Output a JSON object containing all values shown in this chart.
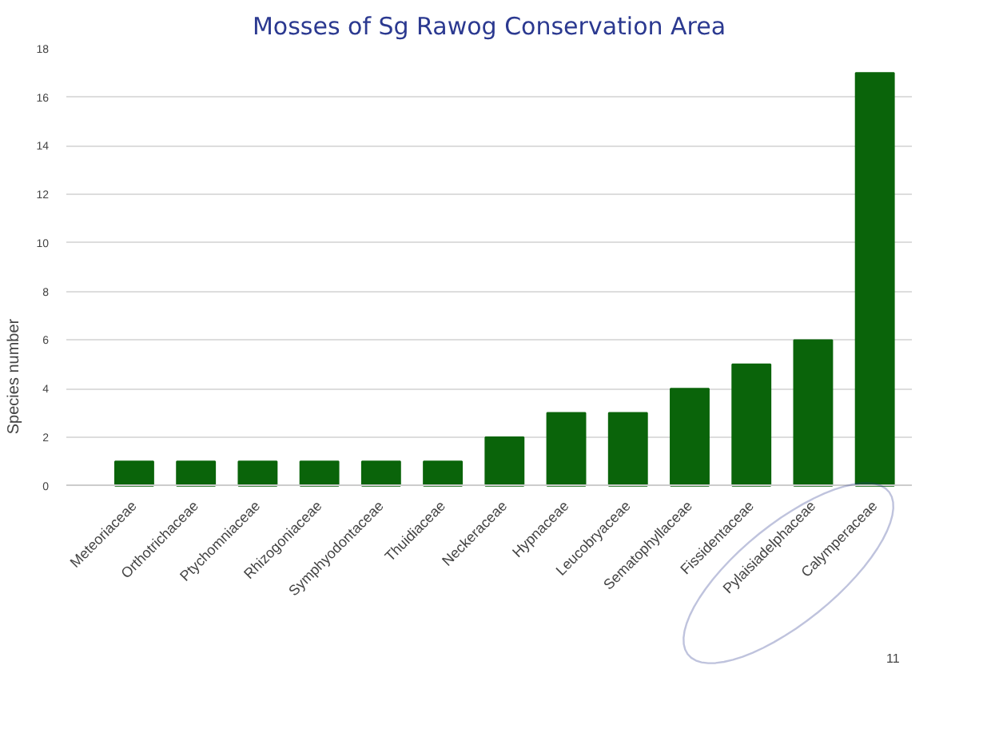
{
  "chart_data": {
    "type": "bar",
    "title": "Mosses of Sg Rawog Conservation Area",
    "ylabel": "Species number",
    "categories": [
      "Meteoriaceae",
      "Orthotrichaceae",
      "Ptychomniaceae",
      "Rhizogoniaceae",
      "Symphyodontaceae",
      "Thuidiaceae",
      "Neckeraceae",
      "Hypnaceae",
      "Leucobryaceae",
      "Sematophyllaceae",
      "Fissidentaceae",
      "Pylaisiadelphaceae",
      "Calymperaceae"
    ],
    "values": [
      1,
      1,
      1,
      1,
      1,
      1,
      2,
      3,
      3,
      4,
      5,
      6,
      17
    ],
    "color": "#0a640a",
    "ylim": [
      0,
      18
    ],
    "yticks": [
      0,
      2,
      4,
      6,
      8,
      10,
      12,
      14,
      16,
      18
    ],
    "grid": "y",
    "annotations": [
      "11"
    ]
  }
}
